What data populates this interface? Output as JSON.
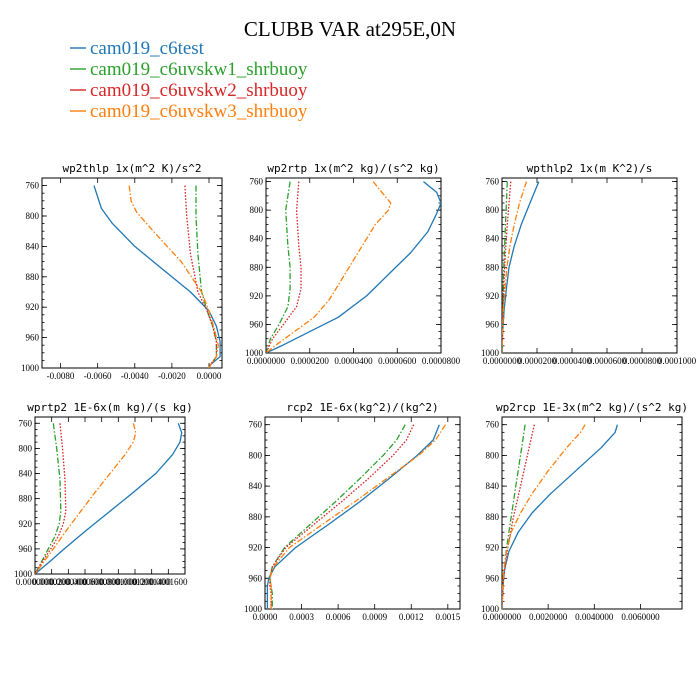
{
  "figure": {
    "title": "CLUBB VAR at295E,0N",
    "legend": [
      {
        "name": "cam019_c6test",
        "color": "#1f77b4",
        "dash": "solid"
      },
      {
        "name": "cam019_c6uvskw1_shrbuoy",
        "color": "#2ca02c",
        "dash": "dashdot"
      },
      {
        "name": "cam019_c6uvskw2_shrbuoy",
        "color": "#d62728",
        "dash": "dotted"
      },
      {
        "name": "cam019_c6uvskw3_shrbuoy",
        "color": "#ff7f0e",
        "dash": "dashdot"
      }
    ]
  },
  "chart_data": [
    {
      "type": "line",
      "title": "wp2thlp  1x(m^2 K)/s^2",
      "xlim": [
        -0.009,
        0.0007
      ],
      "ylim": [
        1000,
        750
      ],
      "xticks": [
        -0.008,
        -0.006,
        -0.004,
        -0.002,
        0.0
      ],
      "xtick_labels": [
        "-0.0080",
        "-0.0060",
        "-0.0040",
        "-0.0020",
        "0.0000"
      ],
      "yticks": [
        760,
        800,
        840,
        880,
        920,
        960,
        1000
      ],
      "ytick_labels": [
        "760",
        "800",
        "840",
        "880",
        "920",
        "960",
        "1000"
      ],
      "series": [
        {
          "y": [
            760,
            775,
            790,
            810,
            840,
            870,
            900,
            925,
            945,
            965,
            985,
            995,
            1000
          ],
          "x": [
            -0.0062,
            -0.006,
            -0.0058,
            -0.0052,
            -0.004,
            -0.0025,
            -0.001,
            0.0,
            0.0004,
            0.0006,
            0.0006,
            0.0001,
            0.0
          ]
        },
        {
          "y": [
            760,
            800,
            850,
            900,
            925,
            945,
            965,
            985,
            995,
            1000
          ],
          "x": [
            -0.0007,
            -0.0007,
            -0.0006,
            -0.0004,
            -0.0001,
            0.0002,
            0.0004,
            0.0004,
            0.0001,
            0.0
          ]
        },
        {
          "y": [
            760,
            800,
            850,
            900,
            925,
            945,
            965,
            985,
            995,
            1000
          ],
          "x": [
            -0.0013,
            -0.0012,
            -0.001,
            -0.0006,
            -0.0001,
            0.0002,
            0.0004,
            0.0004,
            0.0001,
            0.0
          ]
        },
        {
          "y": [
            760,
            780,
            795,
            820,
            860,
            900,
            925,
            950,
            970,
            985,
            995,
            1000
          ],
          "x": [
            -0.0043,
            -0.0042,
            -0.0039,
            -0.003,
            -0.0015,
            -0.0004,
            0.0,
            0.0003,
            0.0005,
            0.0004,
            0.0001,
            0.0
          ]
        }
      ]
    },
    {
      "type": "line",
      "title": "wp2rtp  1x(m^2 kg)/(s^2 kg)",
      "xlim": [
        0,
        8e-05
      ],
      "ylim": [
        1000,
        755
      ],
      "xticks": [
        0,
        2e-05,
        4e-05,
        6e-05,
        8e-05
      ],
      "xtick_labels": [
        "0.0000000",
        "0.0000200",
        "0.0000400",
        "0.0000600",
        "0.0000800"
      ],
      "yticks": [
        760,
        800,
        840,
        880,
        920,
        960,
        1000
      ],
      "ytick_labels": [
        "760",
        "800",
        "840",
        "880",
        "920",
        "960",
        "1000"
      ],
      "series": [
        {
          "y": [
            760,
            775,
            790,
            805,
            830,
            860,
            890,
            920,
            950,
            970,
            990,
            1000
          ],
          "x": [
            7.2e-05,
            7.8e-05,
            8e-05,
            7.8e-05,
            7.4e-05,
            6.6e-05,
            5.6e-05,
            4.6e-05,
            3.3e-05,
            2e-05,
            7e-06,
            0.0
          ]
        },
        {
          "y": [
            760,
            800,
            850,
            880,
            910,
            935,
            960,
            980,
            1000
          ],
          "x": [
            1.1e-05,
            9e-06,
            1e-05,
            1.1e-05,
            1.1e-05,
            1e-05,
            6e-06,
            2e-06,
            0.0
          ]
        },
        {
          "y": [
            760,
            800,
            850,
            880,
            910,
            935,
            960,
            980,
            1000
          ],
          "x": [
            1.5e-05,
            1.4e-05,
            1.5e-05,
            1.6e-05,
            1.6e-05,
            1.4e-05,
            8e-06,
            3e-06,
            0.0
          ]
        },
        {
          "y": [
            760,
            775,
            790,
            800,
            820,
            845,
            870,
            900,
            925,
            950,
            970,
            990,
            1000
          ],
          "x": [
            4.9e-05,
            5.3e-05,
            5.7e-05,
            5.6e-05,
            5e-05,
            4.5e-05,
            4e-05,
            3.4e-05,
            2.9e-05,
            2.2e-05,
            1.3e-05,
            4e-06,
            0.0
          ]
        }
      ]
    },
    {
      "type": "line",
      "title": "wpthlp2  1x(m K^2)/s",
      "xlim": [
        0,
        0.0001
      ],
      "ylim": [
        1000,
        755
      ],
      "xticks": [
        0,
        2e-05,
        4e-05,
        6e-05,
        8e-05,
        0.0001
      ],
      "xtick_labels": [
        "0.0000000",
        "0.0000200",
        "0.0000400",
        "0.0000600",
        "0.0000800",
        "0.0001000"
      ],
      "yticks": [
        760,
        800,
        840,
        880,
        920,
        960,
        1000
      ],
      "ytick_labels": [
        "760",
        "800",
        "840",
        "880",
        "920",
        "960",
        "1000"
      ],
      "series": [
        {
          "y": [
            760,
            790,
            820,
            850,
            880,
            910,
            940,
            970,
            1000
          ],
          "x": [
            2.1e-05,
            1.6e-05,
            1.1e-05,
            7e-06,
            4e-06,
            2.5e-06,
            1.2e-06,
            4e-07,
            0.0
          ]
        },
        {
          "y": [
            760,
            790,
            820,
            850,
            880,
            910,
            940,
            970,
            1000
          ],
          "x": [
            3e-06,
            2.5e-06,
            2e-06,
            1.5e-06,
            1e-06,
            7e-07,
            4e-07,
            1e-07,
            0.0
          ]
        },
        {
          "y": [
            760,
            790,
            820,
            850,
            880,
            910,
            940,
            970,
            1000
          ],
          "x": [
            5e-06,
            4e-06,
            3e-06,
            2.2e-06,
            1.5e-06,
            1e-06,
            5e-07,
            2e-07,
            0.0
          ]
        },
        {
          "y": [
            760,
            790,
            820,
            850,
            880,
            910,
            940,
            970,
            1000
          ],
          "x": [
            1.4e-05,
            1e-05,
            7e-06,
            4.5e-06,
            2.8e-06,
            1.7e-06,
            8e-07,
            3e-07,
            0.0
          ]
        }
      ]
    },
    {
      "type": "line",
      "title": "wprtp2  1E-6x(m kg)/(s kg)",
      "xlim": [
        0,
        0.00018
      ],
      "ylim": [
        1000,
        750
      ],
      "xticks": [
        0,
        2e-05,
        4e-05,
        6e-05,
        8e-05,
        0.0001,
        0.00012,
        0.00014,
        0.00016
      ],
      "xtick_labels": [
        "0.0000000",
        "0.0000200",
        "0.0000400",
        "0.0000600",
        "0.0000800",
        "0.0001000",
        "0.0001200",
        "0.0001400",
        "0.0001600"
      ],
      "yticks": [
        760,
        800,
        840,
        880,
        920,
        960,
        1000
      ],
      "ytick_labels": [
        "760",
        "800",
        "840",
        "880",
        "920",
        "960",
        "1000"
      ],
      "series": [
        {
          "y": [
            760,
            775,
            790,
            810,
            840,
            870,
            900,
            930,
            960,
            980,
            1000
          ],
          "x": [
            0.000172,
            0.000176,
            0.000174,
            0.000165,
            0.000145,
            0.000118,
            9e-05,
            6.2e-05,
            3.5e-05,
            1.8e-05,
            0.0
          ]
        },
        {
          "y": [
            760,
            800,
            850,
            900,
            920,
            940,
            960,
            980,
            1000
          ],
          "x": [
            2.2e-05,
            2.6e-05,
            3e-05,
            3.1e-05,
            2.9e-05,
            2.4e-05,
            1.6e-05,
            8e-06,
            0.0
          ]
        },
        {
          "y": [
            760,
            800,
            850,
            900,
            920,
            940,
            960,
            980,
            1000
          ],
          "x": [
            3e-05,
            3.3e-05,
            3.6e-05,
            3.7e-05,
            3.4e-05,
            2.8e-05,
            1.9e-05,
            9e-06,
            0.0
          ]
        },
        {
          "y": [
            760,
            775,
            790,
            810,
            840,
            870,
            900,
            930,
            960,
            980,
            1000
          ],
          "x": [
            0.000118,
            0.000121,
            0.000118,
            0.000108,
            9e-05,
            7.2e-05,
            5.5e-05,
            3.8e-05,
            2.2e-05,
            1.1e-05,
            0.0
          ]
        }
      ]
    },
    {
      "type": "line",
      "title": "rcp2  1E-6x(kg^2)/(kg^2)",
      "xlim": [
        0,
        0.0016
      ],
      "ylim": [
        1000,
        750
      ],
      "xticks": [
        0,
        0.0003,
        0.0006,
        0.0009,
        0.0012,
        0.0015
      ],
      "xtick_labels": [
        "0.0000",
        "0.0003",
        "0.0006",
        "0.0009",
        "0.0012",
        "0.0015"
      ],
      "yticks": [
        760,
        800,
        840,
        880,
        920,
        960,
        1000
      ],
      "ytick_labels": [
        "760",
        "800",
        "840",
        "880",
        "920",
        "960",
        "1000"
      ],
      "series": [
        {
          "y": [
            760,
            780,
            800,
            830,
            860,
            890,
            920,
            945,
            960,
            970,
            980,
            1000
          ],
          "x": [
            0.00143,
            0.00138,
            0.00125,
            0.00102,
            0.00078,
            0.00052,
            0.00025,
            8e-05,
            3e-05,
            2e-05,
            2e-05,
            2e-05
          ]
        },
        {
          "y": [
            760,
            780,
            800,
            830,
            860,
            890,
            920,
            945,
            960,
            970,
            980,
            1000
          ],
          "x": [
            0.00115,
            0.00108,
            0.00097,
            0.00078,
            0.00058,
            0.00037,
            0.00016,
            6e-05,
            4e-05,
            5e-05,
            6e-05,
            6e-05
          ]
        },
        {
          "y": [
            760,
            780,
            800,
            830,
            860,
            890,
            920,
            945,
            960,
            970,
            980,
            1000
          ],
          "x": [
            0.00122,
            0.00116,
            0.00105,
            0.00085,
            0.00063,
            0.0004,
            0.00017,
            6e-05,
            4e-05,
            4e-05,
            5e-05,
            5e-05
          ]
        },
        {
          "y": [
            760,
            780,
            800,
            830,
            860,
            890,
            920,
            945,
            960,
            970,
            980,
            1000
          ],
          "x": [
            0.00148,
            0.0014,
            0.00126,
            0.001,
            0.00074,
            0.00047,
            0.0002,
            7e-05,
            4e-05,
            5e-05,
            5e-05,
            5e-05
          ]
        }
      ]
    },
    {
      "type": "line",
      "title": "wp2rcp  1E-3x(m^2 kg)/(s^2 kg)",
      "xlim": [
        0,
        0.0078
      ],
      "ylim": [
        1000,
        750
      ],
      "xticks": [
        0,
        0.002,
        0.004,
        0.006
      ],
      "xtick_labels": [
        "0.0000000",
        "0.0020000",
        "0.0040000",
        "0.0060000"
      ],
      "yticks": [
        760,
        800,
        840,
        880,
        920,
        960,
        1000
      ],
      "ytick_labels": [
        "760",
        "800",
        "840",
        "880",
        "920",
        "960",
        "1000"
      ],
      "series": [
        {
          "y": [
            760,
            770,
            790,
            820,
            850,
            875,
            900,
            925,
            950,
            975,
            1000
          ],
          "x": [
            0.005,
            0.0049,
            0.0043,
            0.0032,
            0.0021,
            0.0013,
            0.0007,
            0.0003,
            0.0001,
            3e-05,
            0.0
          ]
        },
        {
          "y": [
            760,
            800,
            840,
            880,
            920,
            960,
            1000
          ],
          "x": [
            0.001,
            0.0008,
            0.0006,
            0.0004,
            0.0002,
            5e-05,
            0.0
          ]
        },
        {
          "y": [
            760,
            800,
            840,
            880,
            920,
            960,
            1000
          ],
          "x": [
            0.0014,
            0.0011,
            0.0008,
            0.0005,
            0.00025,
            7e-05,
            0.0
          ]
        },
        {
          "y": [
            760,
            770,
            790,
            820,
            850,
            875,
            900,
            925,
            950,
            975,
            1000
          ],
          "x": [
            0.0036,
            0.0034,
            0.0028,
            0.002,
            0.0013,
            0.0008,
            0.0004,
            0.0002,
            7e-05,
            2e-05,
            0.0
          ]
        }
      ]
    }
  ]
}
